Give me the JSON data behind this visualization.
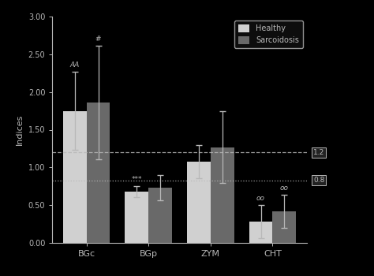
{
  "categories": [
    "BGc",
    "BGp",
    "ZYM",
    "CHT"
  ],
  "healthy_values": [
    1.75,
    0.68,
    1.08,
    0.28
  ],
  "sarcoidosis_values": [
    1.86,
    0.73,
    1.27,
    0.42
  ],
  "healthy_errors": [
    0.52,
    0.07,
    0.22,
    0.22
  ],
  "sarcoidosis_errors": [
    0.75,
    0.17,
    0.48,
    0.22
  ],
  "healthy_color": "#d0d0d0",
  "sarcoidosis_color": "#696969",
  "background_color": "#000000",
  "text_color": "#b8b8b8",
  "ylabel": "Indices",
  "ylim": [
    0.0,
    3.0
  ],
  "yticks": [
    0.0,
    0.5,
    1.0,
    1.5,
    2.0,
    2.5,
    3.0
  ],
  "ytick_labels": [
    "0.00",
    "0.50",
    "1.00",
    "1.50",
    "2.00",
    "2.50",
    "3.00"
  ],
  "hline1": 1.2,
  "hline2": 0.83,
  "hline1_label": "1.2",
  "hline2_label": "0.8",
  "annotations_healthy": [
    "AA",
    "***",
    "",
    "oo"
  ],
  "annotations_sarcoidosis": [
    "#",
    "",
    "",
    "oo"
  ],
  "bar_width": 0.38,
  "legend_healthy": "Healthy",
  "legend_sarcoidosis": "Sarcoidosis"
}
